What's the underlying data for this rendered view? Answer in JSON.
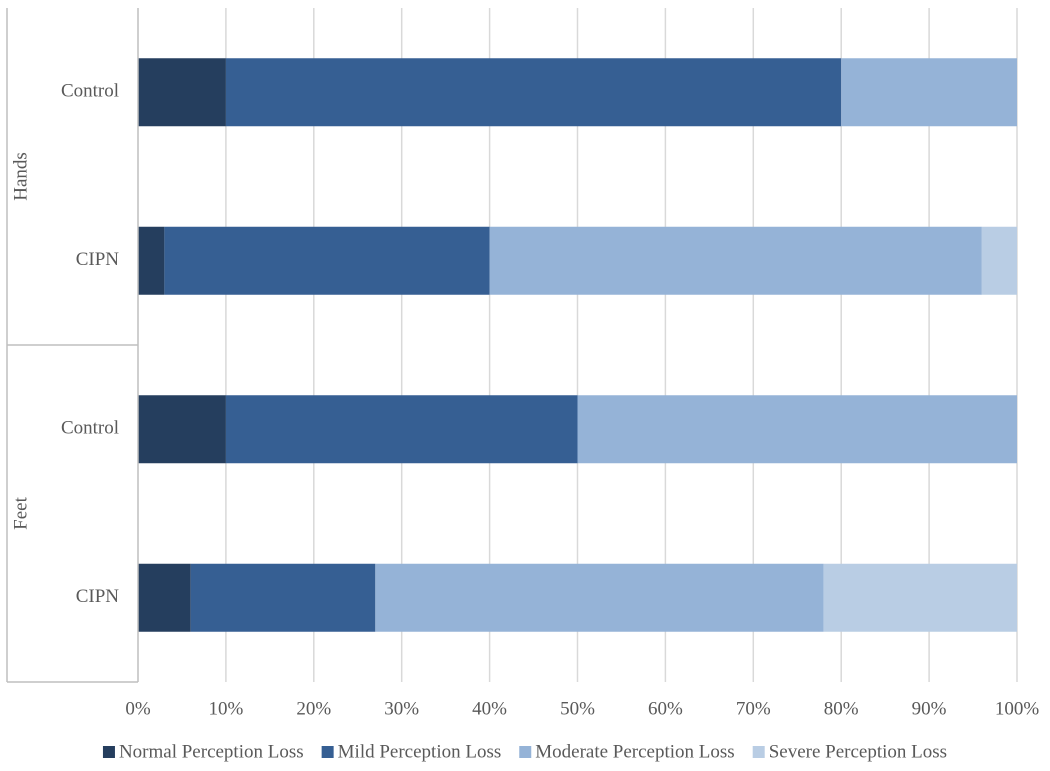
{
  "chart_data": {
    "type": "stacked-bar-horizontal",
    "groups": [
      {
        "name": "Hands",
        "categories": [
          "Control",
          "CIPN"
        ]
      },
      {
        "name": "Feet",
        "categories": [
          "Control",
          "CIPN"
        ]
      }
    ],
    "series": [
      {
        "name": "Normal Perception Loss",
        "color": "#253e5e",
        "values": [
          10,
          3,
          10,
          6
        ]
      },
      {
        "name": "Mild Perception Loss",
        "color": "#365f93",
        "values": [
          70,
          37,
          40,
          21
        ]
      },
      {
        "name": "Moderate Perception Loss",
        "color": "#95b3d7",
        "values": [
          20,
          56,
          50,
          51
        ]
      },
      {
        "name": "Severe Perception Loss",
        "color": "#b9cde4",
        "values": [
          0,
          4,
          0,
          22
        ]
      }
    ],
    "xlim": [
      0,
      100
    ],
    "xticks": [
      {
        "value": 0,
        "label": "0%"
      },
      {
        "value": 10,
        "label": "10%"
      },
      {
        "value": 20,
        "label": "20%"
      },
      {
        "value": 30,
        "label": "30%"
      },
      {
        "value": 40,
        "label": "40%"
      },
      {
        "value": 50,
        "label": "50%"
      },
      {
        "value": 60,
        "label": "60%"
      },
      {
        "value": 70,
        "label": "70%"
      },
      {
        "value": 80,
        "label": "80%"
      },
      {
        "value": 90,
        "label": "90%"
      },
      {
        "value": 100,
        "label": "100%"
      }
    ],
    "grid": true,
    "legend": "bottom"
  }
}
